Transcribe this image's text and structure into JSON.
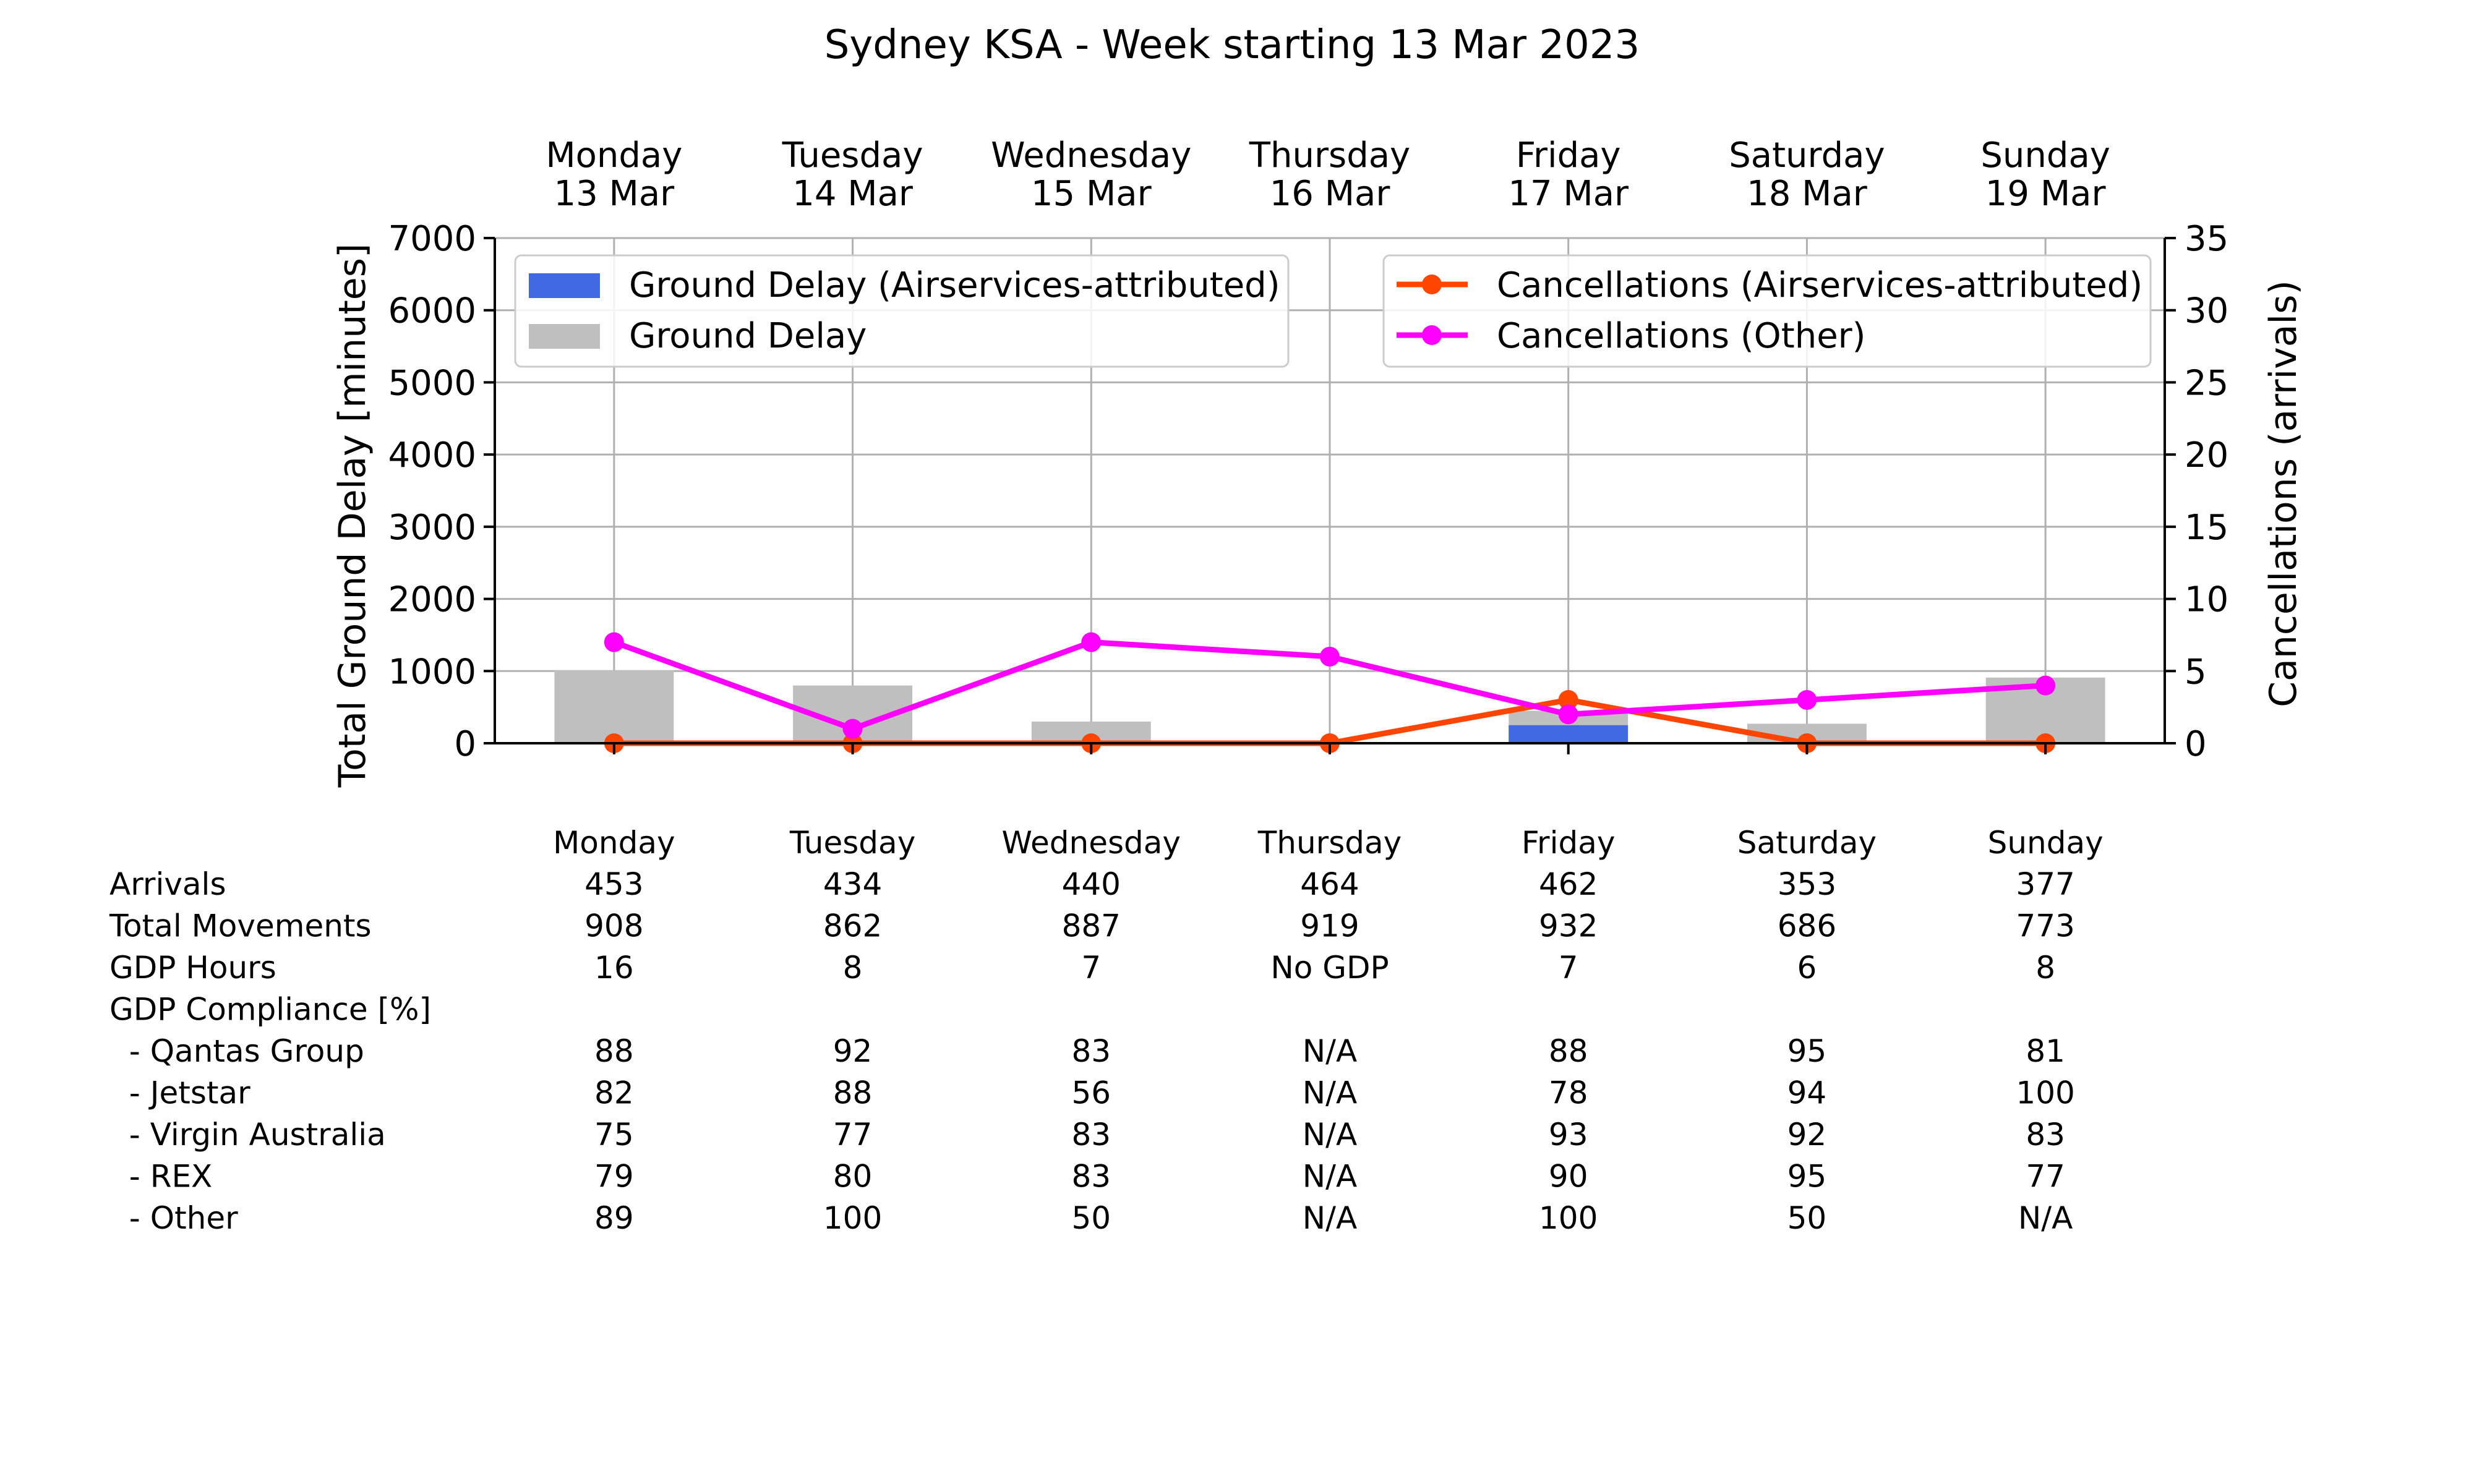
{
  "chart_data": {
    "type": "bar",
    "title": "Sydney KSA - Week starting 13 Mar 2023",
    "days": [
      {
        "name": "Monday",
        "date": "13 Mar"
      },
      {
        "name": "Tuesday",
        "date": "14 Mar"
      },
      {
        "name": "Wednesday",
        "date": "15 Mar"
      },
      {
        "name": "Thursday",
        "date": "16 Mar"
      },
      {
        "name": "Friday",
        "date": "17 Mar"
      },
      {
        "name": "Saturday",
        "date": "18 Mar"
      },
      {
        "name": "Sunday",
        "date": "19 Mar"
      }
    ],
    "ylabel_left": "Total Ground Delay [minutes]",
    "ylabel_right": "Cancellations (arrivals)",
    "ylim_left": [
      0,
      7000
    ],
    "ylim_right": [
      0,
      35
    ],
    "yticks_left": [
      0,
      1000,
      2000,
      3000,
      4000,
      5000,
      6000,
      7000
    ],
    "yticks_right": [
      0,
      5,
      10,
      15,
      20,
      25,
      30,
      35
    ],
    "grid": true,
    "bar_series": [
      {
        "name": "Ground Delay (Airservices-attributed)",
        "color": "#4169e1",
        "values": [
          0,
          0,
          0,
          0,
          250,
          0,
          0
        ]
      },
      {
        "name": "Ground Delay",
        "color": "#bfbfbf",
        "values": [
          1010,
          800,
          300,
          0,
          450,
          270,
          910
        ]
      }
    ],
    "line_series": [
      {
        "name": "Cancellations (Airservices-attributed)",
        "color": "#ff4500",
        "values": [
          0,
          0,
          0,
          0,
          3,
          0,
          0
        ]
      },
      {
        "name": "Cancellations (Other)",
        "color": "#ff00ff",
        "values": [
          7,
          1,
          7,
          6,
          2,
          3,
          4
        ]
      }
    ],
    "legend_bars_position": "upper left",
    "legend_lines_position": "upper right"
  },
  "table": {
    "header": [
      "Monday",
      "Tuesday",
      "Wednesday",
      "Thursday",
      "Friday",
      "Saturday",
      "Sunday"
    ],
    "rows": [
      {
        "label": "Arrivals",
        "values": [
          "453",
          "434",
          "440",
          "464",
          "462",
          "353",
          "377"
        ]
      },
      {
        "label": "Total Movements",
        "values": [
          "908",
          "862",
          "887",
          "919",
          "932",
          "686",
          "773"
        ]
      },
      {
        "label": "GDP Hours",
        "values": [
          "16",
          "8",
          "7",
          "No GDP",
          "7",
          "6",
          "8"
        ]
      },
      {
        "label": "GDP Compliance [%]",
        "values": [
          "",
          "",
          "",
          "",
          "",
          "",
          ""
        ]
      },
      {
        "label": "  - Qantas Group",
        "values": [
          "88",
          "92",
          "83",
          "N/A",
          "88",
          "95",
          "81"
        ]
      },
      {
        "label": "  - Jetstar",
        "values": [
          "82",
          "88",
          "56",
          "N/A",
          "78",
          "94",
          "100"
        ]
      },
      {
        "label": "  - Virgin Australia",
        "values": [
          "75",
          "77",
          "83",
          "N/A",
          "93",
          "92",
          "83"
        ]
      },
      {
        "label": "  - REX",
        "values": [
          "79",
          "80",
          "83",
          "N/A",
          "90",
          "95",
          "77"
        ]
      },
      {
        "label": "  - Other",
        "values": [
          "89",
          "100",
          "50",
          "N/A",
          "100",
          "50",
          "N/A"
        ]
      }
    ]
  }
}
